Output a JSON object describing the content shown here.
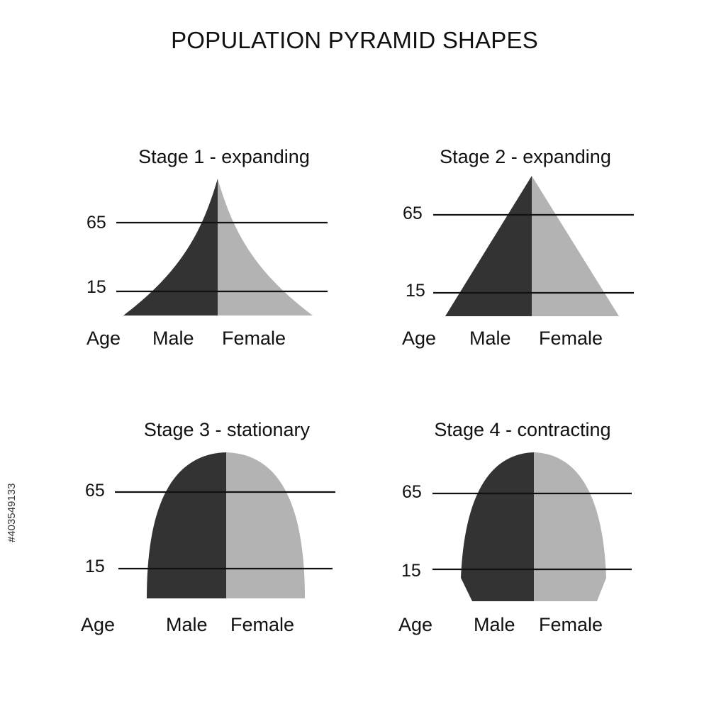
{
  "title": "POPULATION PYRAMID SHAPES",
  "colors": {
    "male": "#333333",
    "female": "#b3b3b3",
    "line": "#111111"
  },
  "labels": {
    "age": "Age",
    "male": "Male",
    "female": "Female"
  },
  "stages": [
    {
      "title": "Stage 1 - expanding",
      "age_65": "65",
      "age_15": "15"
    },
    {
      "title": "Stage 2 - expanding",
      "age_65": "65",
      "age_15": "15"
    },
    {
      "title": "Stage 3 - stationary",
      "age_65": "65",
      "age_15": "15"
    },
    {
      "title": "Stage 4 - contracting",
      "age_65": "65",
      "age_15": "15"
    }
  ],
  "stock_id": "#403549133"
}
